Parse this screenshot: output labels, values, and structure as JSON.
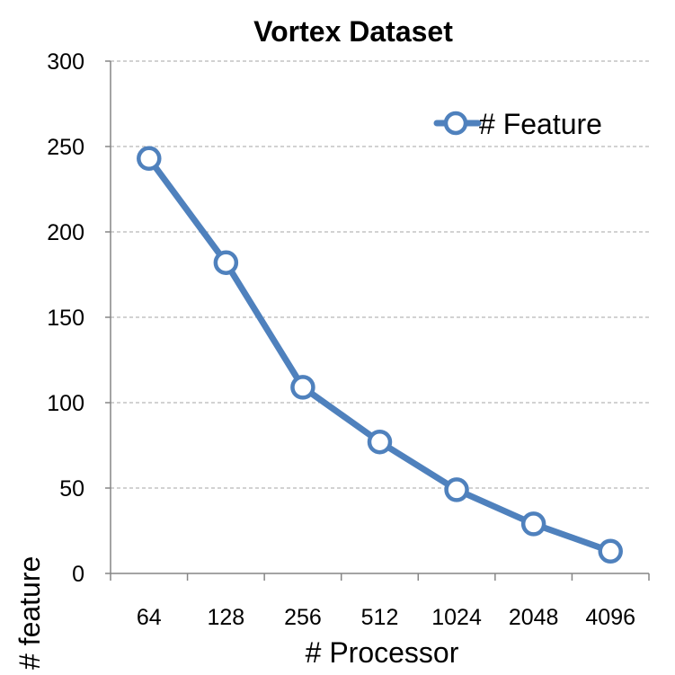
{
  "chart_data": {
    "type": "line",
    "title": "Vortex Dataset",
    "xlabel": "# Processor",
    "ylabel": "# feature",
    "categories": [
      "64",
      "128",
      "256",
      "512",
      "1024",
      "2048",
      "4096"
    ],
    "ylim": [
      0,
      300
    ],
    "yticks": [
      0,
      50,
      100,
      150,
      200,
      250,
      300
    ],
    "grid": true,
    "legend_position": "top-right",
    "series": [
      {
        "name": "# Feature",
        "values": [
          243,
          182,
          109,
          77,
          49,
          29,
          13
        ],
        "color": "#4f81bd",
        "marker": "circle-open"
      }
    ]
  }
}
